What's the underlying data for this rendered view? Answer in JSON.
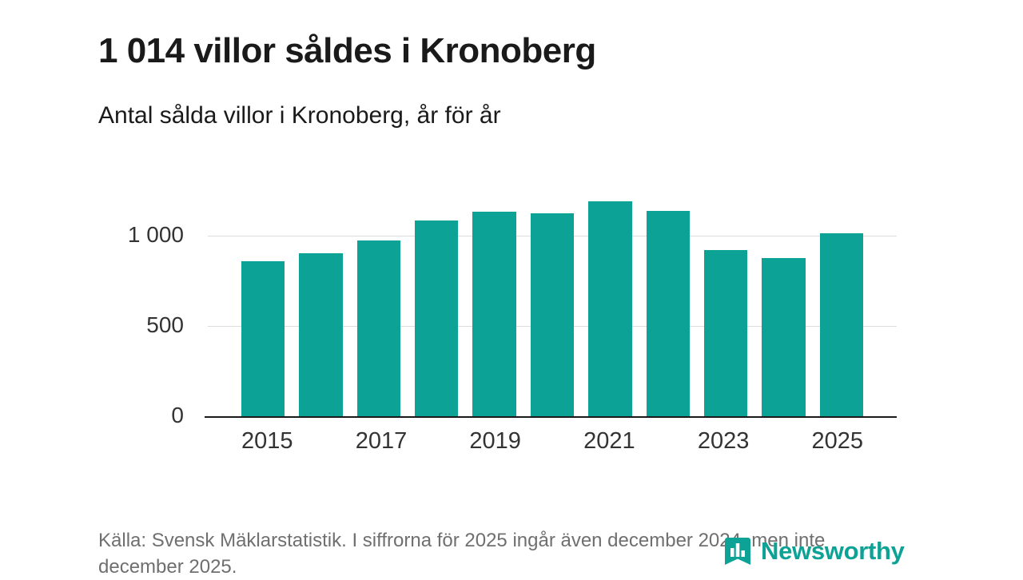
{
  "header": {
    "title": "1 014 villor såldes i Kronoberg",
    "subtitle": "Antal sålda villor i Kronoberg, år för år"
  },
  "footer": {
    "source": "Källa: Svensk Mäklarstatistik. I siffrorna för 2025 ingår även december 2024, men inte december 2025."
  },
  "brand": {
    "name": "Newsworthy",
    "color": "#0ca295"
  },
  "chart_data": {
    "type": "bar",
    "title": "1 014 villor såldes i Kronoberg",
    "subtitle": "Antal sålda villor i Kronoberg, år för år",
    "categories": [
      2015,
      2016,
      2017,
      2018,
      2019,
      2020,
      2021,
      2022,
      2023,
      2024,
      2025
    ],
    "values": [
      860,
      905,
      975,
      1085,
      1135,
      1125,
      1195,
      1140,
      925,
      880,
      1014
    ],
    "bar_color": "#0ca295",
    "xlabel": "",
    "ylabel": "",
    "ylim": [
      0,
      1290
    ],
    "y_ticks": [
      {
        "value": 0,
        "label": "0"
      },
      {
        "value": 500,
        "label": "500"
      },
      {
        "value": 1000,
        "label": "1 000"
      }
    ],
    "x_tick_labels": [
      "2015",
      "",
      "2017",
      "",
      "2019",
      "",
      "2021",
      "",
      "2023",
      "",
      "2025"
    ],
    "grid": "horizontal",
    "legend": "none"
  }
}
